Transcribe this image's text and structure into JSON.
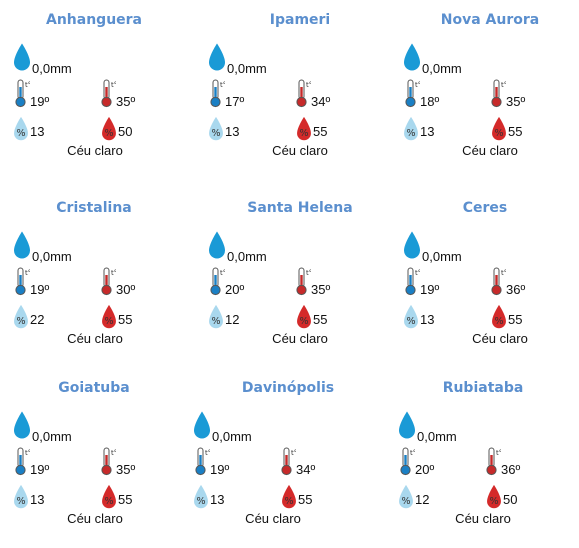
{
  "theme": {
    "title_color": "#5b8fce",
    "rain_color": "#1a9ad6",
    "cold_color": "#1a7fc4",
    "hot_color": "#c62a2a",
    "humid_low_color": "#a9d8ee",
    "humid_high_color": "#d42a2a"
  },
  "cities": [
    {
      "name": "Anhanguera",
      "rain": "0,0mm",
      "t_min": "19º",
      "t_max": "35º",
      "hum_min": "13",
      "hum_max": "50",
      "condition": "Céu claro"
    },
    {
      "name": "Ipameri",
      "rain": "0,0mm",
      "t_min": "17º",
      "t_max": "34º",
      "hum_min": "13",
      "hum_max": "55",
      "condition": "Céu claro"
    },
    {
      "name": "Nova Aurora",
      "rain": "0,0mm",
      "t_min": "18º",
      "t_max": "35º",
      "hum_min": "13",
      "hum_max": "55",
      "condition": "Céu claro"
    },
    {
      "name": "Cristalina",
      "rain": "0,0mm",
      "t_min": "19º",
      "t_max": "30º",
      "hum_min": "22",
      "hum_max": "55",
      "condition": "Céu claro"
    },
    {
      "name": "Santa Helena",
      "rain": "0,0mm",
      "t_min": "20º",
      "t_max": "35º",
      "hum_min": "12",
      "hum_max": "55",
      "condition": "Céu claro"
    },
    {
      "name": "Ceres",
      "rain": "0,0mm",
      "t_min": "19º",
      "t_max": "36º",
      "hum_min": "13",
      "hum_max": "55",
      "condition": "Céu claro"
    },
    {
      "name": "Goiatuba",
      "rain": "0,0mm",
      "t_min": "19º",
      "t_max": "35º",
      "hum_min": "13",
      "hum_max": "55",
      "condition": "Céu claro"
    },
    {
      "name": "Davinópolis",
      "rain": "0,0mm",
      "t_min": "19º",
      "t_max": "34º",
      "hum_min": "13",
      "hum_max": "55",
      "condition": "Céu claro"
    },
    {
      "name": "Rubiataba",
      "rain": "0,0mm",
      "t_min": "20º",
      "t_max": "36º",
      "hum_min": "12",
      "hum_max": "50",
      "condition": "Céu claro"
    }
  ]
}
